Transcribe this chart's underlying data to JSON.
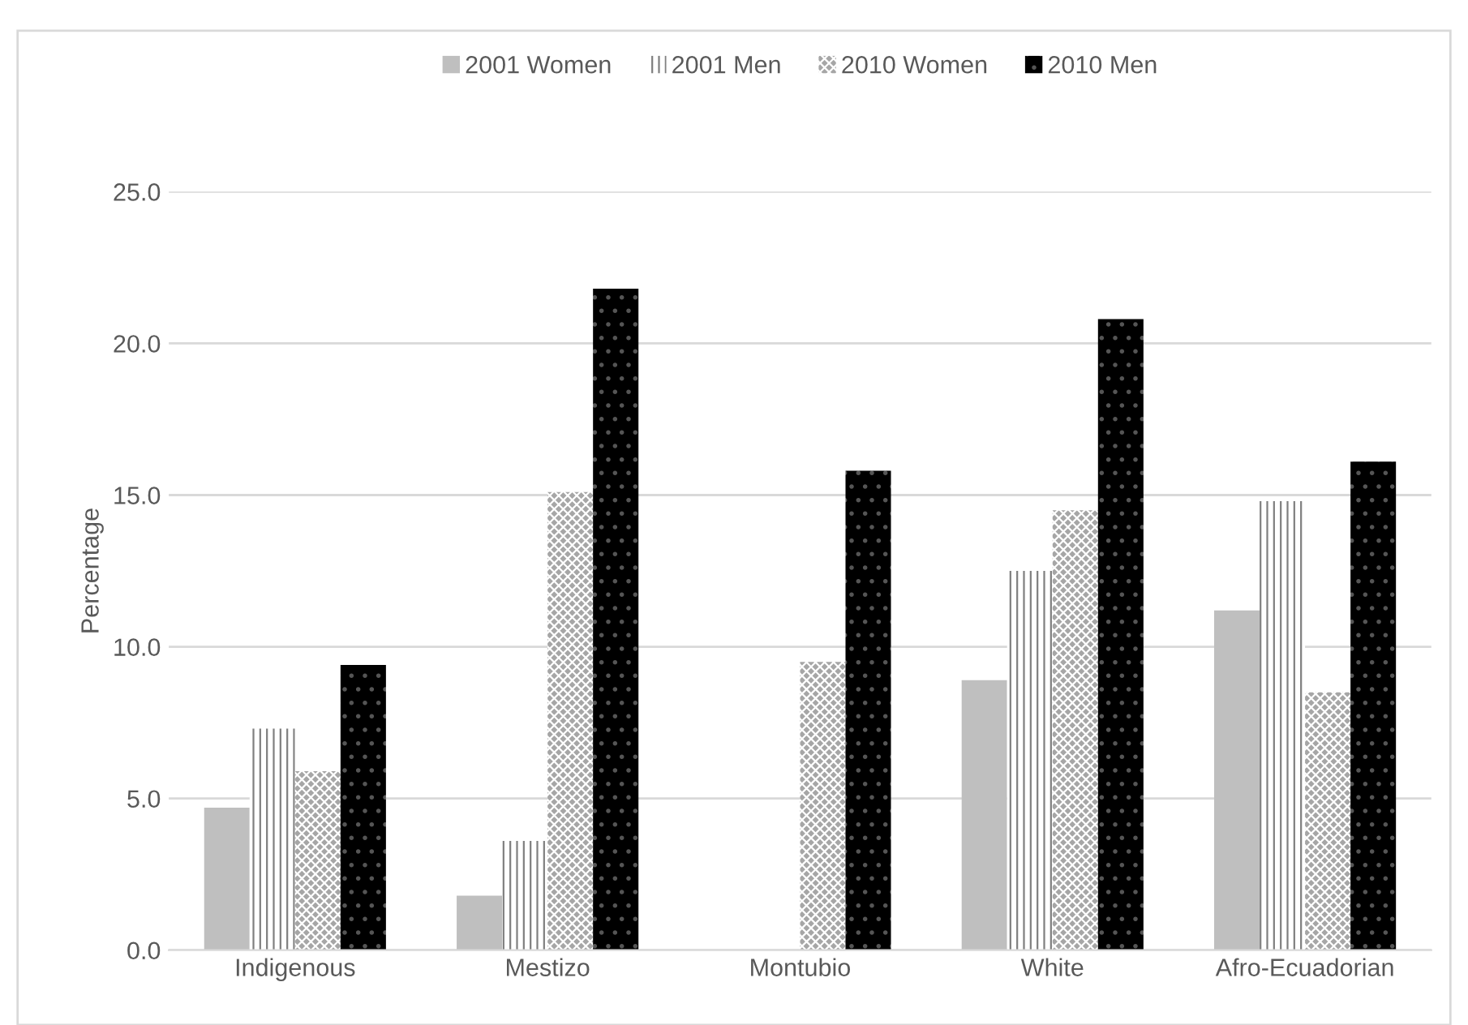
{
  "chart_data": {
    "type": "bar",
    "ylabel": "Percentage",
    "categories": [
      "Indigenous",
      "Mestizo",
      "Montubio",
      "White",
      "Afro-Ecuadorian"
    ],
    "series": [
      {
        "name": "2001 Women",
        "color": "#bfbfbf",
        "values": [
          4.7,
          1.8,
          null,
          8.9,
          11.2
        ]
      },
      {
        "name": "2001 Men",
        "color": "#808080",
        "values": [
          7.3,
          3.6,
          null,
          12.5,
          14.8
        ]
      },
      {
        "name": "2010 Women",
        "color": "#a6a6a6",
        "values": [
          5.9,
          15.1,
          9.5,
          14.5,
          8.5
        ]
      },
      {
        "name": "2010 Men",
        "color": "#000000",
        "values": [
          9.4,
          21.8,
          15.8,
          20.8,
          16.1
        ]
      }
    ],
    "ylim": [
      0,
      25
    ],
    "yticks": [
      {
        "value": 0,
        "label": "0.0"
      },
      {
        "value": 5,
        "label": "5.0"
      },
      {
        "value": 10,
        "label": "10.0"
      },
      {
        "value": 15,
        "label": "15.0"
      },
      {
        "value": 20,
        "label": "20.0"
      },
      {
        "value": 25,
        "label": "25.0"
      }
    ],
    "grid": "y",
    "legend": "top"
  }
}
